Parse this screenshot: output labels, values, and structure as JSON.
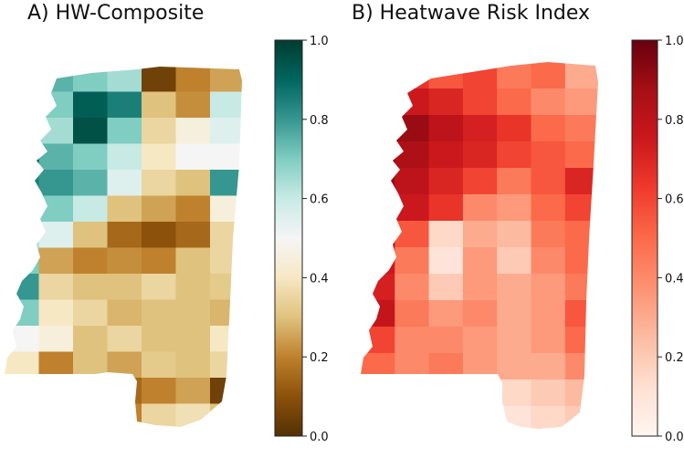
{
  "panels": [
    {
      "id": "A",
      "title": "A) HW-Composite",
      "colormap": "BrBG",
      "colors": [
        "#543005",
        "#8c510a",
        "#bf812d",
        "#dfc27d",
        "#f6e8c3",
        "#f5f5f5",
        "#c7eae5",
        "#80cdc1",
        "#35978f",
        "#01665e",
        "#003c30"
      ],
      "colorbar": {
        "min": 0.0,
        "max": 1.0,
        "ticks": [
          "0.0",
          "0.2",
          "0.4",
          "0.6",
          "0.8",
          "1.0"
        ]
      },
      "region_values": [
        [
          0.5,
          0.75,
          0.7,
          0.65,
          0.05,
          0.2,
          0.25
        ],
        [
          0.45,
          0.7,
          0.92,
          0.85,
          0.3,
          0.22,
          0.6
        ],
        [
          0.9,
          0.65,
          0.95,
          0.7,
          0.35,
          0.45,
          0.55
        ],
        [
          0.95,
          0.75,
          0.7,
          0.6,
          0.4,
          0.5,
          0.5
        ],
        [
          0.85,
          0.8,
          0.75,
          0.55,
          0.35,
          0.3,
          0.8
        ],
        [
          0.75,
          0.7,
          0.6,
          0.3,
          0.25,
          0.2,
          0.45
        ],
        [
          0.65,
          0.55,
          0.3,
          0.15,
          0.1,
          0.15,
          0.35
        ],
        [
          0.7,
          0.25,
          0.2,
          0.22,
          0.2,
          0.3,
          0.35
        ],
        [
          0.8,
          0.35,
          0.3,
          0.3,
          0.35,
          0.3,
          0.32
        ],
        [
          0.7,
          0.4,
          0.35,
          0.28,
          0.3,
          0.3,
          0.28
        ],
        [
          0.5,
          0.45,
          0.3,
          0.35,
          0.3,
          0.3,
          0.4
        ],
        [
          0.4,
          0.2,
          0.3,
          0.25,
          0.32,
          0.3,
          0.35
        ],
        [
          null,
          null,
          null,
          0.15,
          0.2,
          0.25,
          0.05
        ],
        [
          null,
          null,
          null,
          0.2,
          0.35,
          0.38,
          0.3
        ]
      ]
    },
    {
      "id": "B",
      "title": "B) Heatwave Risk Index",
      "colormap": "Reds",
      "colors": [
        "#fff5f0",
        "#fee0d2",
        "#fcbba1",
        "#fc9272",
        "#fb6a4a",
        "#ef3b2c",
        "#cb181d",
        "#a50f15",
        "#67000d"
      ],
      "colorbar": {
        "min": 0.0,
        "max": 1.0,
        "ticks": [
          "0.0",
          "0.2",
          "0.4",
          "0.6",
          "0.8",
          "1.0"
        ]
      },
      "region_values": [
        [
          0.85,
          0.65,
          0.55,
          0.6,
          0.45,
          0.5,
          0.3
        ],
        [
          0.9,
          0.75,
          0.7,
          0.6,
          0.5,
          0.4,
          0.35
        ],
        [
          1.0,
          0.9,
          0.8,
          0.72,
          0.65,
          0.5,
          0.45
        ],
        [
          0.95,
          0.85,
          0.75,
          0.7,
          0.6,
          0.55,
          0.5
        ],
        [
          0.9,
          0.8,
          0.7,
          0.6,
          0.45,
          0.55,
          0.7
        ],
        [
          0.88,
          0.75,
          0.65,
          0.4,
          0.35,
          0.5,
          0.6
        ],
        [
          0.82,
          0.55,
          0.15,
          0.3,
          0.25,
          0.45,
          0.5
        ],
        [
          0.75,
          0.45,
          0.1,
          0.35,
          0.2,
          0.4,
          0.5
        ],
        [
          0.72,
          0.4,
          0.2,
          0.35,
          0.3,
          0.35,
          0.45
        ],
        [
          0.78,
          0.45,
          0.35,
          0.4,
          0.3,
          0.35,
          0.55
        ],
        [
          0.6,
          0.4,
          0.4,
          0.35,
          0.3,
          0.35,
          0.5
        ],
        [
          0.5,
          0.4,
          0.45,
          0.35,
          0.3,
          0.3,
          0.4
        ],
        [
          null,
          null,
          null,
          0.1,
          0.15,
          0.2,
          0.25
        ],
        [
          null,
          null,
          null,
          0.05,
          0.1,
          0.15,
          0.2
        ]
      ]
    }
  ]
}
